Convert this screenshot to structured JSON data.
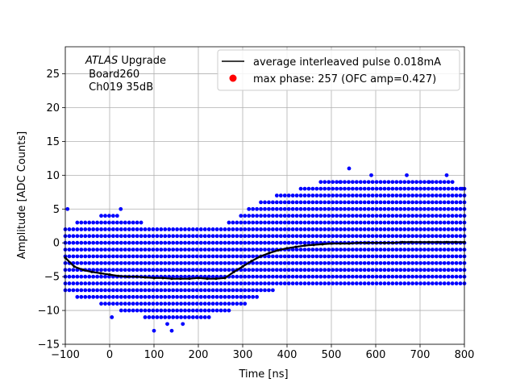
{
  "chart_data": {
    "type": "scatter",
    "xlabel": "Time [ns]",
    "ylabel": "Amplitude [ADC Counts]",
    "xlim": [
      -100,
      800
    ],
    "ylim": [
      -15,
      29
    ],
    "xticks": [
      -100,
      0,
      100,
      200,
      300,
      400,
      500,
      600,
      700,
      800
    ],
    "yticks": [
      -15,
      -10,
      -5,
      0,
      5,
      10,
      15,
      20,
      25
    ],
    "grid": true,
    "legend_position": "top-right",
    "annotation": {
      "italic_part": "ATLAS",
      "rest": " Upgrade",
      "line2": " Board260",
      "line3": " Ch019 35dB"
    },
    "series": [
      {
        "name": "average interleaved pulse 0.018mA",
        "kind": "line",
        "color": "#000000",
        "x": [
          -100,
          -80,
          -60,
          -40,
          -20,
          0,
          20,
          40,
          60,
          80,
          100,
          120,
          140,
          160,
          180,
          200,
          220,
          240,
          260,
          280,
          300,
          320,
          340,
          360,
          380,
          400,
          420,
          440,
          460,
          480,
          500,
          520,
          540,
          560,
          580,
          600,
          620,
          640,
          660,
          680,
          700,
          720,
          740,
          760,
          780,
          800
        ],
        "y": [
          -2.2,
          -3.5,
          -4.0,
          -4.3,
          -4.5,
          -4.7,
          -4.9,
          -5.0,
          -5.0,
          -5.1,
          -5.2,
          -5.2,
          -5.3,
          -5.3,
          -5.3,
          -5.2,
          -5.3,
          -5.3,
          -5.2,
          -4.3,
          -3.5,
          -2.7,
          -2.0,
          -1.5,
          -1.1,
          -0.8,
          -0.6,
          -0.4,
          -0.3,
          -0.2,
          -0.1,
          -0.1,
          -0.1,
          0.0,
          0.0,
          0.0,
          0.0,
          0.0,
          0.1,
          0.1,
          0.1,
          0.1,
          0.1,
          0.1,
          0.1,
          0.1
        ]
      },
      {
        "name": "max phase: 257 (OFC amp=0.427)",
        "kind": "marker",
        "color": "#ff0000",
        "x": [],
        "y": []
      },
      {
        "name": "samples",
        "kind": "scatter",
        "color": "#0000ff",
        "x_start": -100,
        "x_end": 800,
        "x_step": 9.0,
        "envelope_x": [
          -100,
          -50,
          0,
          50,
          100,
          150,
          200,
          250,
          300,
          350,
          400,
          450,
          500,
          550,
          600,
          650,
          700,
          750,
          800
        ],
        "envelope_ymin": [
          -7,
          -8,
          -9,
          -10,
          -11,
          -11,
          -11,
          -10,
          -9,
          -7,
          -6,
          -6,
          -6,
          -6,
          -6,
          -6,
          -6,
          -6,
          -6
        ],
        "envelope_ymax": [
          2,
          3,
          4,
          3,
          2,
          2,
          2,
          2,
          4,
          6,
          7,
          8,
          9,
          9,
          9,
          9,
          9,
          9,
          8
        ],
        "outliers": [
          {
            "x": -95,
            "y": 5
          },
          {
            "x": -90,
            "y": -3
          },
          {
            "x": 25,
            "y": 5
          },
          {
            "x": 5,
            "y": -11
          },
          {
            "x": 100,
            "y": -13
          },
          {
            "x": 140,
            "y": -13
          },
          {
            "x": 130,
            "y": -12
          },
          {
            "x": 165,
            "y": -12
          },
          {
            "x": 540,
            "y": 11
          },
          {
            "x": 520,
            "y": 9
          },
          {
            "x": 670,
            "y": 10
          },
          {
            "x": 590,
            "y": 10
          },
          {
            "x": 720,
            "y": 9
          },
          {
            "x": 760,
            "y": 10
          },
          {
            "x": 795,
            "y": 8
          }
        ]
      }
    ]
  }
}
